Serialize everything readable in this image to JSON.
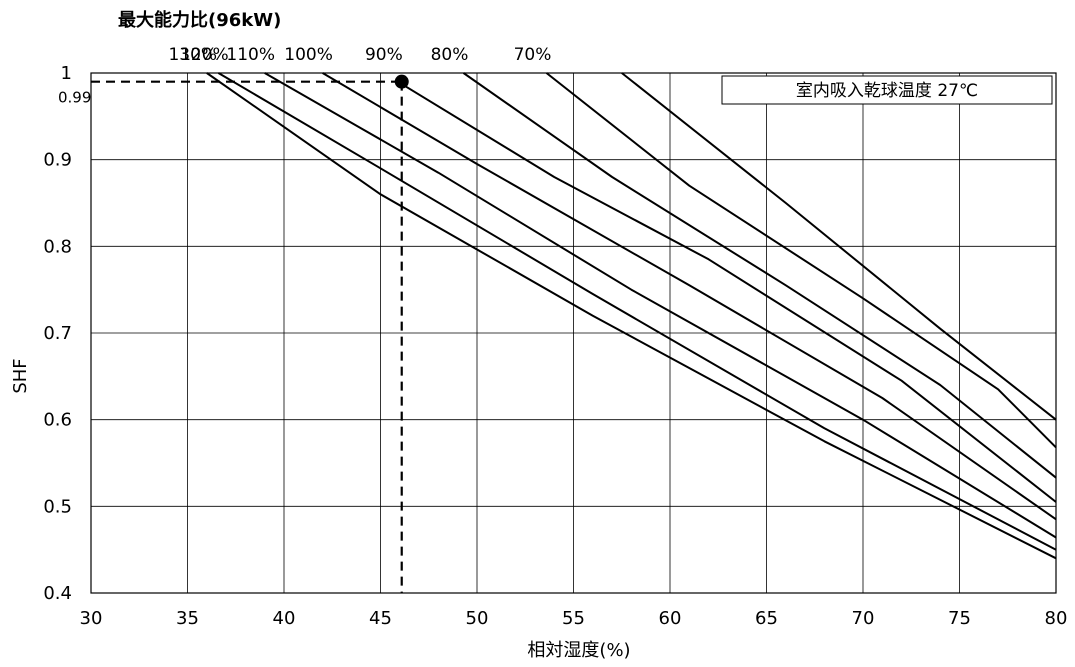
{
  "chart_data": {
    "type": "line",
    "title": "最大能力比(96kW)",
    "annotation": "室内吸入乾球温度 27℃",
    "xlabel": "相対湿度(%)",
    "ylabel": "SHF",
    "xlim": [
      30,
      80
    ],
    "ylim": [
      0.4,
      1.0
    ],
    "x_ticks": [
      30,
      35,
      40,
      45,
      50,
      55,
      60,
      65,
      70,
      75,
      80
    ],
    "x_tick_labels": [
      "30",
      "35",
      "40",
      "45",
      "50",
      "55",
      "60",
      "65",
      "70",
      "75",
      "80"
    ],
    "y_ticks": [
      0.4,
      0.5,
      0.6,
      0.7,
      0.8,
      0.9,
      1.0
    ],
    "y_tick_labels": [
      "0.4",
      "0.5",
      "0.6",
      "0.7",
      "0.8",
      "0.9",
      "1"
    ],
    "grid": true,
    "series": [
      {
        "name": "130%",
        "points": [
          [
            36.0,
            1.0
          ],
          [
            45.0,
            0.86
          ],
          [
            56.0,
            0.72
          ],
          [
            68.0,
            0.575
          ],
          [
            80.0,
            0.44
          ]
        ]
      },
      {
        "name": "120%",
        "points": [
          [
            36.6,
            1.0
          ],
          [
            45.0,
            0.89
          ],
          [
            56.0,
            0.745
          ],
          [
            68.0,
            0.59
          ],
          [
            80.0,
            0.45
          ]
        ]
      },
      {
        "name": "110%",
        "points": [
          [
            39.0,
            1.0
          ],
          [
            48.0,
            0.885
          ],
          [
            58.0,
            0.75
          ],
          [
            70.0,
            0.6
          ],
          [
            80.0,
            0.464
          ]
        ]
      },
      {
        "name": "100%",
        "points": [
          [
            42.0,
            1.0
          ],
          [
            50.0,
            0.895
          ],
          [
            61.0,
            0.755
          ],
          [
            71.0,
            0.625
          ],
          [
            80.0,
            0.485
          ]
        ]
      },
      {
        "name": "90%",
        "points": [
          [
            45.9,
            0.99
          ],
          [
            54.0,
            0.88
          ],
          [
            62.0,
            0.785
          ],
          [
            72.0,
            0.645
          ],
          [
            80.0,
            0.505
          ]
        ]
      },
      {
        "name": "80%",
        "points": [
          [
            49.3,
            1.0
          ],
          [
            57.0,
            0.88
          ],
          [
            66.0,
            0.755
          ],
          [
            74.0,
            0.64
          ],
          [
            80.0,
            0.533
          ]
        ]
      },
      {
        "name": "70%",
        "points": [
          [
            53.6,
            1.0
          ],
          [
            61.0,
            0.87
          ],
          [
            70.0,
            0.74
          ],
          [
            77.0,
            0.635
          ],
          [
            80.0,
            0.568
          ]
        ]
      },
      {
        "name": "",
        "points": [
          [
            57.5,
            1.0
          ],
          [
            66.0,
            0.85
          ],
          [
            74.0,
            0.705
          ],
          [
            80.0,
            0.6
          ]
        ]
      }
    ],
    "operating_point": {
      "x": 46.1,
      "y": 0.99,
      "label": "0.99"
    }
  }
}
